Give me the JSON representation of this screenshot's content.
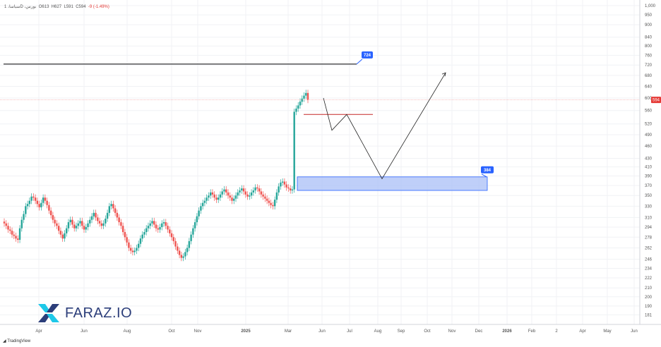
{
  "header": {
    "symbol": "1 ،سیاسا‌D ،بورس",
    "o": "O613",
    "h": "H627",
    "l": "L591",
    "c": "C594",
    "change": "-9 (-1.49%)"
  },
  "brand": {
    "name": "FARAZ.IO",
    "footer": "TradingView"
  },
  "colors": {
    "up": "#26a69a",
    "down": "#ef5350",
    "callout": "#2962ff",
    "zone_fill": "#aabff7",
    "zone_stroke": "#2962ff",
    "hline": "#000000",
    "redline": "#c62828",
    "price_badge": "#e53935",
    "logo_cyan": "#1ec8e8",
    "logo_navy": "#2c3e7a"
  },
  "chart_data": {
    "type": "candlestick",
    "y_scale": "log",
    "price_ticks": [
      1000,
      950,
      900,
      840,
      800,
      760,
      720,
      680,
      640,
      600,
      560,
      520,
      490,
      460,
      430,
      410,
      390,
      370,
      350,
      330,
      310,
      294,
      278,
      262,
      246,
      234,
      222,
      210,
      200,
      190,
      181
    ],
    "time_ticks": [
      "Apr",
      "Jun",
      "Aug",
      "Oct",
      "Nov",
      "2025",
      "Mar",
      "Jun",
      "Jul",
      "Aug",
      "Sep",
      "Oct",
      "Nov",
      "Dec",
      "2026",
      "Feb",
      "2",
      "Apr",
      "May",
      "Jun"
    ],
    "last_price": 594,
    "last_price_label": "594",
    "resistance_level": 724,
    "resistance_label": "724",
    "support_zone": {
      "low": 360,
      "high": 388,
      "label": "384"
    },
    "price_path_levels": [
      600,
      502,
      548,
      384,
      690
    ],
    "red_level": 548,
    "candles_close": [
      300,
      296,
      290,
      288,
      282,
      280,
      276,
      274,
      292,
      306,
      316,
      330,
      334,
      340,
      348,
      346,
      340,
      334,
      328,
      336,
      346,
      340,
      332,
      322,
      314,
      306,
      300,
      296,
      288,
      282,
      276,
      284,
      292,
      302,
      306,
      298,
      292,
      296,
      300,
      304,
      296,
      290,
      294,
      300,
      306,
      312,
      318,
      310,
      304,
      300,
      296,
      300,
      308,
      318,
      330,
      334,
      326,
      318,
      310,
      302,
      296,
      286,
      278,
      270,
      262,
      258,
      256,
      258,
      262,
      268,
      276,
      282,
      286,
      292,
      296,
      300,
      304,
      298,
      292,
      290,
      294,
      300,
      302,
      296,
      290,
      284,
      278,
      272,
      264,
      258,
      252,
      248,
      250,
      256,
      262,
      272,
      282,
      292,
      302,
      312,
      322,
      330,
      336,
      340,
      346,
      350,
      356,
      352,
      346,
      342,
      346,
      352,
      358,
      362,
      356,
      350,
      346,
      340,
      344,
      350,
      356,
      360,
      364,
      358,
      352,
      348,
      350,
      356,
      360,
      366,
      364,
      358,
      352,
      348,
      344,
      340,
      336,
      332,
      330,
      342,
      356,
      368,
      376,
      378,
      372,
      366,
      364,
      360,
      362,
      556,
      566,
      576,
      588,
      598,
      608,
      617,
      594
    ]
  }
}
